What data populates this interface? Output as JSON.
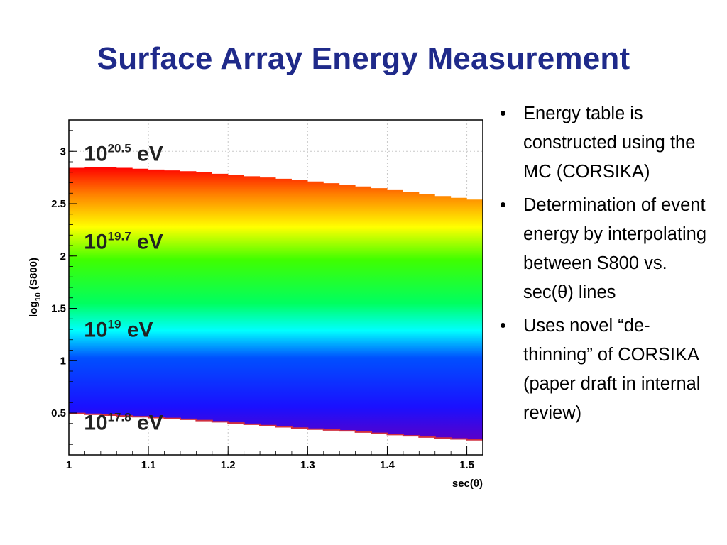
{
  "slide": {
    "title": "Surface Array Energy Measurement",
    "bullets": [
      "Energy table is constructed using the MC (CORSIKA)",
      "Determination of event energy by interpolating between S800 vs. sec(θ) lines",
      "Uses novel “de-thinning” of CORSIKA (paper draft in internal review)"
    ]
  },
  "chart_data": {
    "type": "heatmap",
    "xlabel": "sec(θ)",
    "ylabel_base": "log",
    "ylabel_sub": "10",
    "ylabel_rest": " (S800)",
    "xlim": [
      1.0,
      1.52
    ],
    "ylim": [
      0.1,
      3.3
    ],
    "xticks": [
      "1",
      "1.1",
      "1.2",
      "1.3",
      "1.4",
      "1.5"
    ],
    "yticks": [
      "0.5",
      "1",
      "1.5",
      "2",
      "2.5",
      "3"
    ],
    "grid": true,
    "colormap": "rainbow (violet → blue → cyan → green → yellow → red)",
    "band_upper": {
      "x": [
        1.0,
        1.05,
        1.1,
        1.15,
        1.2,
        1.25,
        1.3,
        1.35,
        1.4,
        1.45,
        1.52
      ],
      "y": [
        2.84,
        2.85,
        2.83,
        2.81,
        2.78,
        2.75,
        2.72,
        2.68,
        2.64,
        2.59,
        2.53
      ]
    },
    "band_lower": {
      "x": [
        1.0,
        1.05,
        1.1,
        1.15,
        1.2,
        1.25,
        1.3,
        1.35,
        1.4,
        1.45,
        1.52
      ],
      "y": [
        0.5,
        0.48,
        0.46,
        0.44,
        0.41,
        0.38,
        0.35,
        0.33,
        0.3,
        0.27,
        0.24
      ]
    },
    "energy_labels": [
      {
        "base": "10",
        "exp": "20.5",
        "unit": " eV",
        "x": 1.01,
        "y": 2.91
      },
      {
        "base": "10",
        "exp": "19.7",
        "unit": " eV",
        "x": 1.01,
        "y": 2.07
      },
      {
        "base": "10",
        "exp": "19",
        "unit": " eV",
        "x": 1.01,
        "y": 1.23
      },
      {
        "base": "10",
        "exp": "17.8",
        "unit": " eV",
        "x": 1.01,
        "y": 0.34
      }
    ]
  }
}
